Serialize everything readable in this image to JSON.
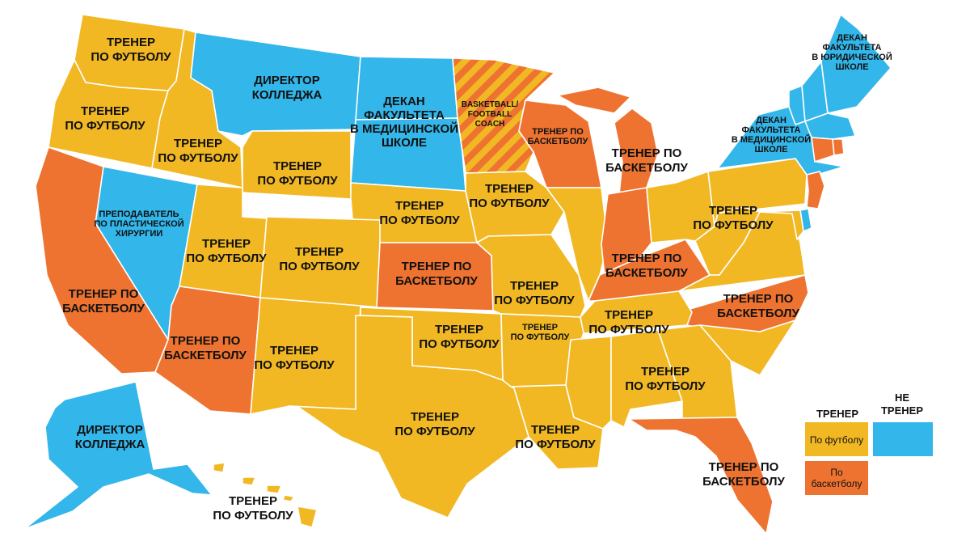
{
  "colors": {
    "football": "#F1B824",
    "basketball": "#EE7331",
    "not_coach": "#33B6EA",
    "stripe_a": "#F1B824",
    "stripe_b": "#EE7331"
  },
  "legend": {
    "coach_header": "ТРЕНЕР",
    "not_coach_header": [
      "НЕ",
      "ТРЕНЕР"
    ],
    "football_label": "По футболу",
    "basketball_label": [
      "По",
      "баскетболу"
    ]
  },
  "regions": [
    {
      "state": "Washington",
      "category": "football",
      "label": [
        "ТРЕНЕР",
        "ПО ФУТБОЛУ"
      ]
    },
    {
      "state": "Oregon",
      "category": "football",
      "label": [
        "ТРЕНЕР",
        "ПО ФУТБОЛУ"
      ]
    },
    {
      "state": "Idaho",
      "category": "football",
      "label": [
        "ТРЕНЕР",
        "ПО ФУТБОЛУ"
      ]
    },
    {
      "state": "Montana",
      "category": "not_coach",
      "label": [
        "ДИРЕКТОР",
        "КОЛЛЕДЖА"
      ]
    },
    {
      "state": "North Dakota",
      "category": "not_coach",
      "label": []
    },
    {
      "state": "South Dakota",
      "category": "not_coach",
      "label": [
        "ДЕКАН",
        "ФАКУЛЬТЕТА",
        "В МЕДИЦИНСКОЙ",
        "ШКОЛЕ"
      ]
    },
    {
      "state": "Minnesota",
      "category": "mixed",
      "label": [
        "BASKETBALL/",
        "FOOTBALL",
        "COACH"
      ]
    },
    {
      "state": "Wisconsin",
      "category": "basketball",
      "label": [
        "ТРЕНЕР ПО",
        "БАСКЕТБОЛУ"
      ]
    },
    {
      "state": "Michigan",
      "category": "basketball",
      "label": [
        "ТРЕНЕР ПО",
        "БАСКЕТБОЛУ"
      ]
    },
    {
      "state": "Wyoming",
      "category": "football",
      "label": [
        "ТРЕНЕР",
        "ПО ФУТБОЛУ"
      ]
    },
    {
      "state": "Nebraska",
      "category": "football",
      "label": [
        "ТРЕНЕР",
        "ПО ФУТБОЛУ"
      ]
    },
    {
      "state": "Iowa",
      "category": "football",
      "label": [
        "ТРЕНЕР",
        "ПО ФУТБОЛУ"
      ]
    },
    {
      "state": "Nevada",
      "category": "not_coach",
      "label": [
        "ПРЕПОДАВАТЕЛЬ",
        "ПО ПЛАСТИЧЕСКОЙ",
        "ХИРУРГИИ"
      ]
    },
    {
      "state": "Utah",
      "category": "football",
      "label": [
        "ТРЕНЕР",
        "ПО ФУТБОЛУ"
      ]
    },
    {
      "state": "Colorado",
      "category": "football",
      "label": [
        "ТРЕНЕР",
        "ПО ФУТБОЛУ"
      ]
    },
    {
      "state": "Kansas",
      "category": "basketball",
      "label": [
        "ТРЕНЕР ПО",
        "БАСКЕТБОЛУ"
      ]
    },
    {
      "state": "Missouri",
      "category": "football",
      "label": [
        "ТРЕНЕР",
        "ПО ФУТБОЛУ"
      ]
    },
    {
      "state": "Illinois",
      "category": "football",
      "label": []
    },
    {
      "state": "Indiana",
      "category": "basketball",
      "label": []
    },
    {
      "state": "Kentucky",
      "category": "basketball",
      "label": [
        "ТРЕНЕР ПО",
        "БАСКЕТБОЛУ"
      ]
    },
    {
      "state": "Ohio",
      "category": "football",
      "label": [
        "ТРЕНЕР",
        "ПО ФУТБОЛУ"
      ]
    },
    {
      "state": "Pennsylvania",
      "category": "football",
      "label": []
    },
    {
      "state": "West Virginia",
      "category": "football",
      "label": []
    },
    {
      "state": "Virginia",
      "category": "football",
      "label": []
    },
    {
      "state": "North Carolina",
      "category": "basketball",
      "label": [
        "ТРЕНЕР ПО",
        "БАСКЕТБОЛУ"
      ]
    },
    {
      "state": "California",
      "category": "basketball",
      "label": [
        "ТРЕНЕР ПО",
        "БАСКЕТБОЛУ"
      ]
    },
    {
      "state": "Arizona",
      "category": "basketball",
      "label": [
        "ТРЕНЕР ПО",
        "БАСКЕТБОЛУ"
      ]
    },
    {
      "state": "New Mexico",
      "category": "football",
      "label": [
        "ТРЕНЕР",
        "ПО ФУТБОЛУ"
      ]
    },
    {
      "state": "Oklahoma",
      "category": "football",
      "label": [
        "ТРЕНЕР",
        "ПО ФУТБОЛУ"
      ]
    },
    {
      "state": "Texas",
      "category": "football",
      "label": [
        "ТРЕНЕР",
        "ПО ФУТБОЛУ"
      ]
    },
    {
      "state": "Arkansas",
      "category": "football",
      "label": [
        "ТРЕНЕР",
        "ПО ФУТБОЛУ"
      ]
    },
    {
      "state": "Louisiana",
      "category": "football",
      "label": [
        "ТРЕНЕР",
        "ПО ФУТБОЛУ"
      ]
    },
    {
      "state": "Mississippi",
      "category": "football",
      "label": []
    },
    {
      "state": "Tennessee",
      "category": "football",
      "label": [
        "ТРЕНЕР",
        "ПО ФУТБОЛУ"
      ]
    },
    {
      "state": "Alabama",
      "category": "football",
      "label": [
        "ТРЕНЕР",
        "ПО ФУТБОЛУ"
      ]
    },
    {
      "state": "Georgia",
      "category": "football",
      "label": []
    },
    {
      "state": "South Carolina",
      "category": "football",
      "label": []
    },
    {
      "state": "Florida",
      "category": "basketball",
      "label": [
        "ТРЕНЕР ПО",
        "БАСКЕТБОЛУ"
      ]
    },
    {
      "state": "New York",
      "category": "not_coach",
      "label": [
        "ДЕКАН",
        "ФАКУЛЬТЕТА",
        "В МЕДИЦИНСКОЙ",
        "ШКОЛЕ"
      ]
    },
    {
      "state": "Vermont",
      "category": "not_coach",
      "label": []
    },
    {
      "state": "New Hampshire",
      "category": "not_coach",
      "label": []
    },
    {
      "state": "Maine",
      "category": "not_coach",
      "label": [
        "ДЕКАН",
        "ФАКУЛЬТЕТА",
        "В ЮРИДИЧЕСКОЙ",
        "ШКОЛЕ"
      ]
    },
    {
      "state": "Massachusetts",
      "category": "not_coach",
      "label": []
    },
    {
      "state": "Connecticut",
      "category": "basketball",
      "label": []
    },
    {
      "state": "Rhode Island",
      "category": "basketball",
      "label": []
    },
    {
      "state": "New Jersey",
      "category": "basketball",
      "label": []
    },
    {
      "state": "Delaware",
      "category": "not_coach",
      "label": []
    },
    {
      "state": "Maryland",
      "category": "football",
      "label": []
    },
    {
      "state": "Alaska",
      "category": "not_coach",
      "label": [
        "ДИРЕКТОР",
        "КОЛЛЕДЖА"
      ]
    },
    {
      "state": "Hawaii",
      "category": "football",
      "label": [
        "ТРЕНЕР",
        "ПО ФУТБОЛУ"
      ]
    }
  ]
}
